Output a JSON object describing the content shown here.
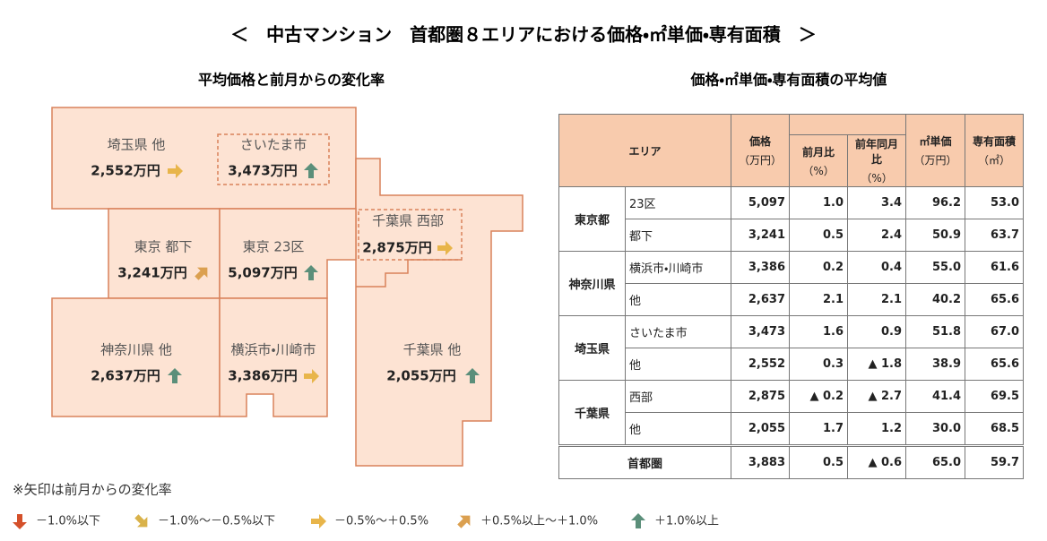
{
  "title": "＜　中古マンション　首都圏８エリアにおける価格・㎡単価・専有面積　＞",
  "map": {
    "subtitle": "平均価格と前月からの変化率",
    "regions": [
      {
        "name": "埼玉県 他",
        "price": "2,552万円"
      },
      {
        "name": "さいたま市",
        "price": "3,473万円"
      },
      {
        "name": "東京 都下",
        "price": "3,241万円"
      },
      {
        "name": "東京 23区",
        "price": "5,097万円"
      },
      {
        "name": "千葉県 西部",
        "price": "2,875万円"
      },
      {
        "name": "神奈川県 他",
        "price": "2,637万円"
      },
      {
        "name": "横浜市・川崎市",
        "price": "3,386万円"
      },
      {
        "name": "千葉県 他",
        "price": "2,055万円"
      }
    ]
  },
  "table": {
    "subtitle": "価格・㎡単価・専有面積の平均値",
    "header": [
      {
        "label": "エリア"
      },
      {
        "label": "価格",
        "unit": "（万円）"
      },
      {
        "label": "前月比",
        "unit": "（%）"
      },
      {
        "label": "前年同月比",
        "unit": "（%）"
      },
      {
        "label": "㎡単価",
        "unit": "（万円）"
      },
      {
        "label": "専有面積",
        "unit": "（㎡）"
      }
    ],
    "groups": [
      {
        "name": "東京都",
        "rows": [
          {
            "area": "23区",
            "cells": [
              "5,097",
              "1.0",
              "3.4",
              "96.2",
              "53.0"
            ]
          },
          {
            "area": "都下",
            "cells": [
              "3,241",
              "0.5",
              "2.4",
              "50.9",
              "63.7"
            ]
          }
        ]
      },
      {
        "name": "神奈川県",
        "rows": [
          {
            "area": "横浜市・川崎市",
            "cells": [
              "3,386",
              "0.2",
              "0.4",
              "55.0",
              "61.6"
            ]
          },
          {
            "area": "他",
            "cells": [
              "2,637",
              "2.1",
              "2.1",
              "40.2",
              "65.6"
            ]
          }
        ]
      },
      {
        "name": "埼玉県",
        "rows": [
          {
            "area": "さいたま市",
            "cells": [
              "3,473",
              "1.6",
              "0.9",
              "51.8",
              "67.0"
            ]
          },
          {
            "area": "他",
            "cells": [
              "2,552",
              "0.3",
              "▲ 1.8",
              "38.9",
              "65.6"
            ]
          }
        ]
      },
      {
        "name": "千葉県",
        "rows": [
          {
            "area": "西部",
            "cells": [
              "2,875",
              "▲ 0.2",
              "▲ 2.7",
              "41.4",
              "69.5"
            ]
          },
          {
            "area": "他",
            "cells": [
              "2,055",
              "1.7",
              "1.2",
              "30.0",
              "68.5"
            ]
          }
        ]
      }
    ],
    "total": {
      "name": "首都圏",
      "cells": [
        "3,883",
        "0.5",
        "▲ 0.6",
        "65.0",
        "59.7"
      ]
    }
  },
  "note": "※矢印は前月からの変化率",
  "legend": [
    "－1.0%以下",
    "－1.0%～－0.5%以下",
    "－0.5%～＋0.5%",
    "＋0.5%以上～＋1.0%",
    "＋1.0%以上"
  ]
}
